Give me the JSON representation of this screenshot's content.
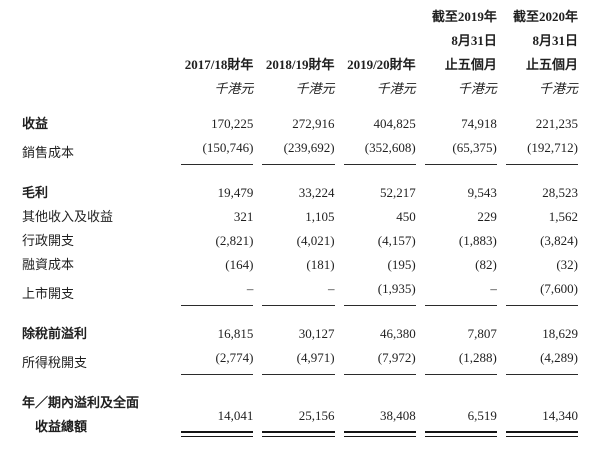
{
  "page": {
    "background": "#ffffff",
    "text_color": "#1f1f1f",
    "rule_color": "#2b2b2b"
  },
  "table": {
    "unit_label": "千港元",
    "empty_value_glyph": "–",
    "columns": [
      {
        "header_lines": [
          "",
          "",
          "2017/18財年"
        ]
      },
      {
        "header_lines": [
          "",
          "",
          "2018/19財年"
        ]
      },
      {
        "header_lines": [
          "",
          "",
          "2019/20財年"
        ]
      },
      {
        "header_lines": [
          "截至2019年",
          "8月31日",
          "止五個月"
        ]
      },
      {
        "header_lines": [
          "截至2020年",
          "8月31日",
          "止五個月"
        ]
      }
    ],
    "rows": [
      {
        "type": "data",
        "label": "收益",
        "bold": true,
        "rule": "none",
        "values": [
          "170,225",
          "272,916",
          "404,825",
          "74,918",
          "221,235"
        ]
      },
      {
        "type": "data",
        "label": "銷售成本",
        "bold": false,
        "rule": "single",
        "values": [
          "(150,746)",
          "(239,692)",
          "(352,608)",
          "(65,375)",
          "(192,712)"
        ]
      },
      {
        "type": "spacer"
      },
      {
        "type": "data",
        "label": "毛利",
        "bold": true,
        "rule": "none",
        "values": [
          "19,479",
          "33,224",
          "52,217",
          "9,543",
          "28,523"
        ]
      },
      {
        "type": "data",
        "label": "其他收入及收益",
        "bold": false,
        "rule": "none",
        "values": [
          "321",
          "1,105",
          "450",
          "229",
          "1,562"
        ]
      },
      {
        "type": "data",
        "label": "行政開支",
        "bold": false,
        "rule": "none",
        "values": [
          "(2,821)",
          "(4,021)",
          "(4,157)",
          "(1,883)",
          "(3,824)"
        ]
      },
      {
        "type": "data",
        "label": "融資成本",
        "bold": false,
        "rule": "none",
        "values": [
          "(164)",
          "(181)",
          "(195)",
          "(82)",
          "(32)"
        ]
      },
      {
        "type": "data",
        "label": "上市開支",
        "bold": false,
        "rule": "single",
        "values": [
          "–",
          "–",
          "(1,935)",
          "–",
          "(7,600)"
        ]
      },
      {
        "type": "spacer"
      },
      {
        "type": "data",
        "label": "除稅前溢利",
        "bold": true,
        "rule": "none",
        "values": [
          "16,815",
          "30,127",
          "46,380",
          "7,807",
          "18,629"
        ]
      },
      {
        "type": "data",
        "label": "所得稅開支",
        "bold": false,
        "rule": "single",
        "values": [
          "(2,774)",
          "(4,971)",
          "(7,972)",
          "(1,288)",
          "(4,289)"
        ]
      },
      {
        "type": "spacer"
      },
      {
        "type": "data",
        "label": "年／期內溢利及全面",
        "label_line2": "收益總額",
        "bold": true,
        "rule": "double",
        "values": [
          "14,041",
          "25,156",
          "38,408",
          "6,519",
          "14,340"
        ]
      }
    ]
  }
}
